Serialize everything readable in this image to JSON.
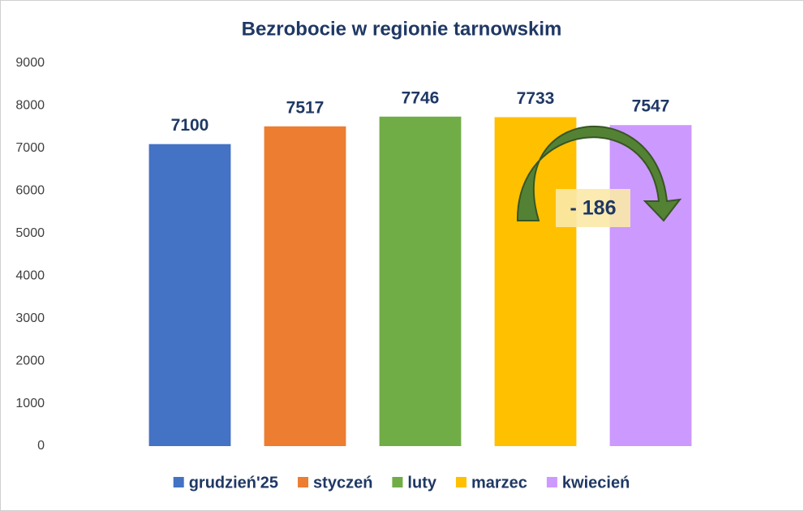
{
  "chart_data": {
    "type": "bar",
    "title": "Bezrobocie w regionie tarnowskim",
    "series": [
      {
        "name": "grudzień'25",
        "color": "#4472c4",
        "values": [
          7100
        ]
      },
      {
        "name": "styczeń",
        "color": "#ed7d31",
        "values": [
          7517
        ]
      },
      {
        "name": "luty",
        "color": "#70ad47",
        "values": [
          7746
        ]
      },
      {
        "name": "marzec",
        "color": "#ffc000",
        "values": [
          7733
        ]
      },
      {
        "name": "kwiecień",
        "color": "#cc99ff",
        "values": [
          7547
        ]
      }
    ],
    "ylim": [
      0,
      9000
    ],
    "yticks": [
      0,
      1000,
      2000,
      3000,
      4000,
      5000,
      6000,
      7000,
      8000,
      9000
    ],
    "grid": false,
    "legend": "bottom",
    "annotation": "- 186"
  }
}
